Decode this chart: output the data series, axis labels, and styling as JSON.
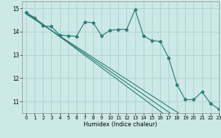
{
  "xlabel": "Humidex (Indice chaleur)",
  "background_color": "#cce9e7",
  "grid_color": "#aad4d0",
  "line_color": "#2e7d75",
  "xlim": [
    -0.5,
    23
  ],
  "ylim": [
    10.5,
    15.3
  ],
  "yticks": [
    11,
    12,
    13,
    14,
    15
  ],
  "xticks": [
    0,
    1,
    2,
    3,
    4,
    5,
    6,
    7,
    8,
    9,
    10,
    11,
    12,
    13,
    14,
    15,
    16,
    17,
    18,
    19,
    20,
    21,
    22,
    23
  ],
  "data_line": [
    14.82,
    14.6,
    14.25,
    14.22,
    13.85,
    13.82,
    13.8,
    14.42,
    14.38,
    13.82,
    14.05,
    14.1,
    14.1,
    14.95,
    13.82,
    13.62,
    13.58,
    12.88,
    11.72,
    11.08,
    11.08,
    11.42,
    10.92,
    10.68
  ],
  "trend_lines": [
    [
      14.82,
      14.58,
      14.32,
      14.05,
      13.78,
      13.52,
      13.25,
      12.98,
      12.72,
      12.45,
      12.18,
      11.92,
      11.65,
      11.38,
      11.12,
      10.85,
      10.58,
      10.32,
      10.05,
      9.78,
      9.52,
      9.25,
      8.98,
      8.72
    ],
    [
      14.78,
      14.55,
      14.3,
      14.05,
      13.8,
      13.55,
      13.3,
      13.05,
      12.8,
      12.55,
      12.3,
      12.05,
      11.8,
      11.55,
      11.3,
      11.05,
      10.8,
      10.55,
      10.3,
      10.05,
      9.8,
      9.55,
      9.3,
      9.05
    ],
    [
      14.75,
      14.52,
      14.28,
      14.05,
      13.82,
      13.58,
      13.35,
      13.12,
      12.88,
      12.65,
      12.42,
      12.18,
      11.95,
      11.72,
      11.48,
      11.25,
      11.02,
      10.78,
      10.55,
      10.32,
      10.08,
      9.85,
      9.62,
      9.38
    ]
  ]
}
